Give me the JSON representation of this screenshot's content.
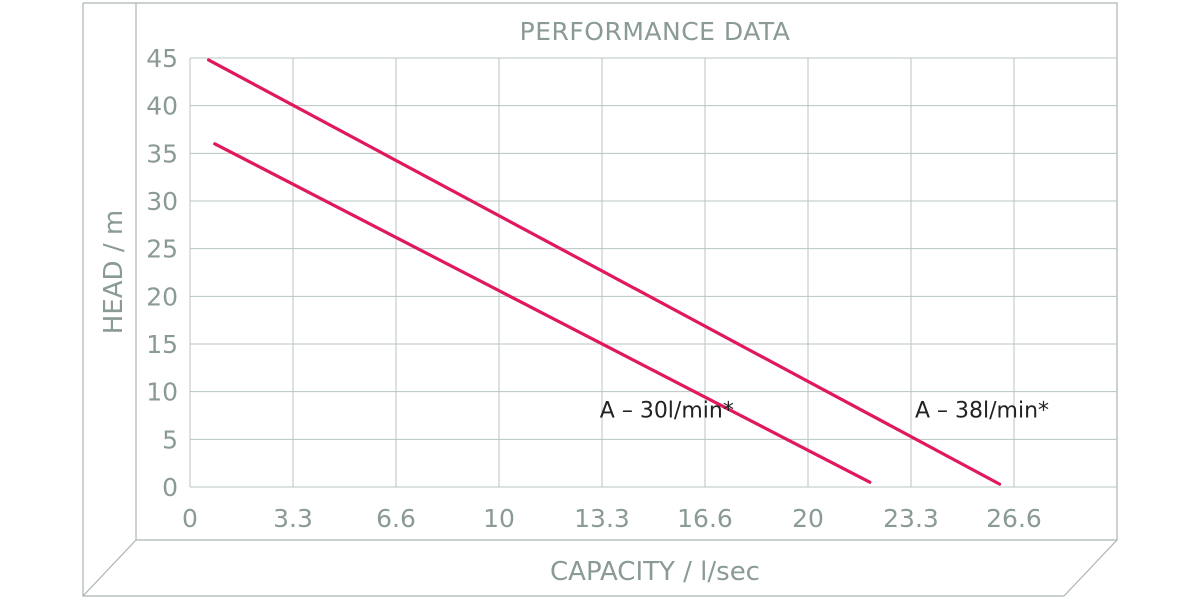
{
  "chart_data": {
    "type": "line",
    "title": "PERFORMANCE DATA",
    "xlabel": "CAPACITY / l/sec",
    "ylabel": "HEAD / m",
    "xlim": [
      0,
      29
    ],
    "ylim": [
      0,
      45
    ],
    "x_ticks": [
      "0",
      "3.3",
      "6.6",
      "10",
      "13.3",
      "16.6",
      "20",
      "23.3",
      "26.6"
    ],
    "y_ticks": [
      "0",
      "5",
      "10",
      "15",
      "20",
      "25",
      "30",
      "35",
      "40",
      "45"
    ],
    "grid": true,
    "series": [
      {
        "name": "A – 30l/min*",
        "x": [
          0.8,
          22.0
        ],
        "y": [
          36,
          0.5
        ],
        "color": "#e0185f",
        "label_at": [
          17.6,
          7.3
        ]
      },
      {
        "name": "A – 38l/min*",
        "x": [
          0.6,
          26.2
        ],
        "y": [
          44.8,
          0.3
        ],
        "color": "#e0185f",
        "label_at": [
          27.8,
          7.3
        ]
      }
    ]
  },
  "colors": {
    "grid": "#b8c4bf",
    "frame": "#a9b5b0",
    "axis_text": "#8a9a94",
    "series": "#e0185f"
  }
}
